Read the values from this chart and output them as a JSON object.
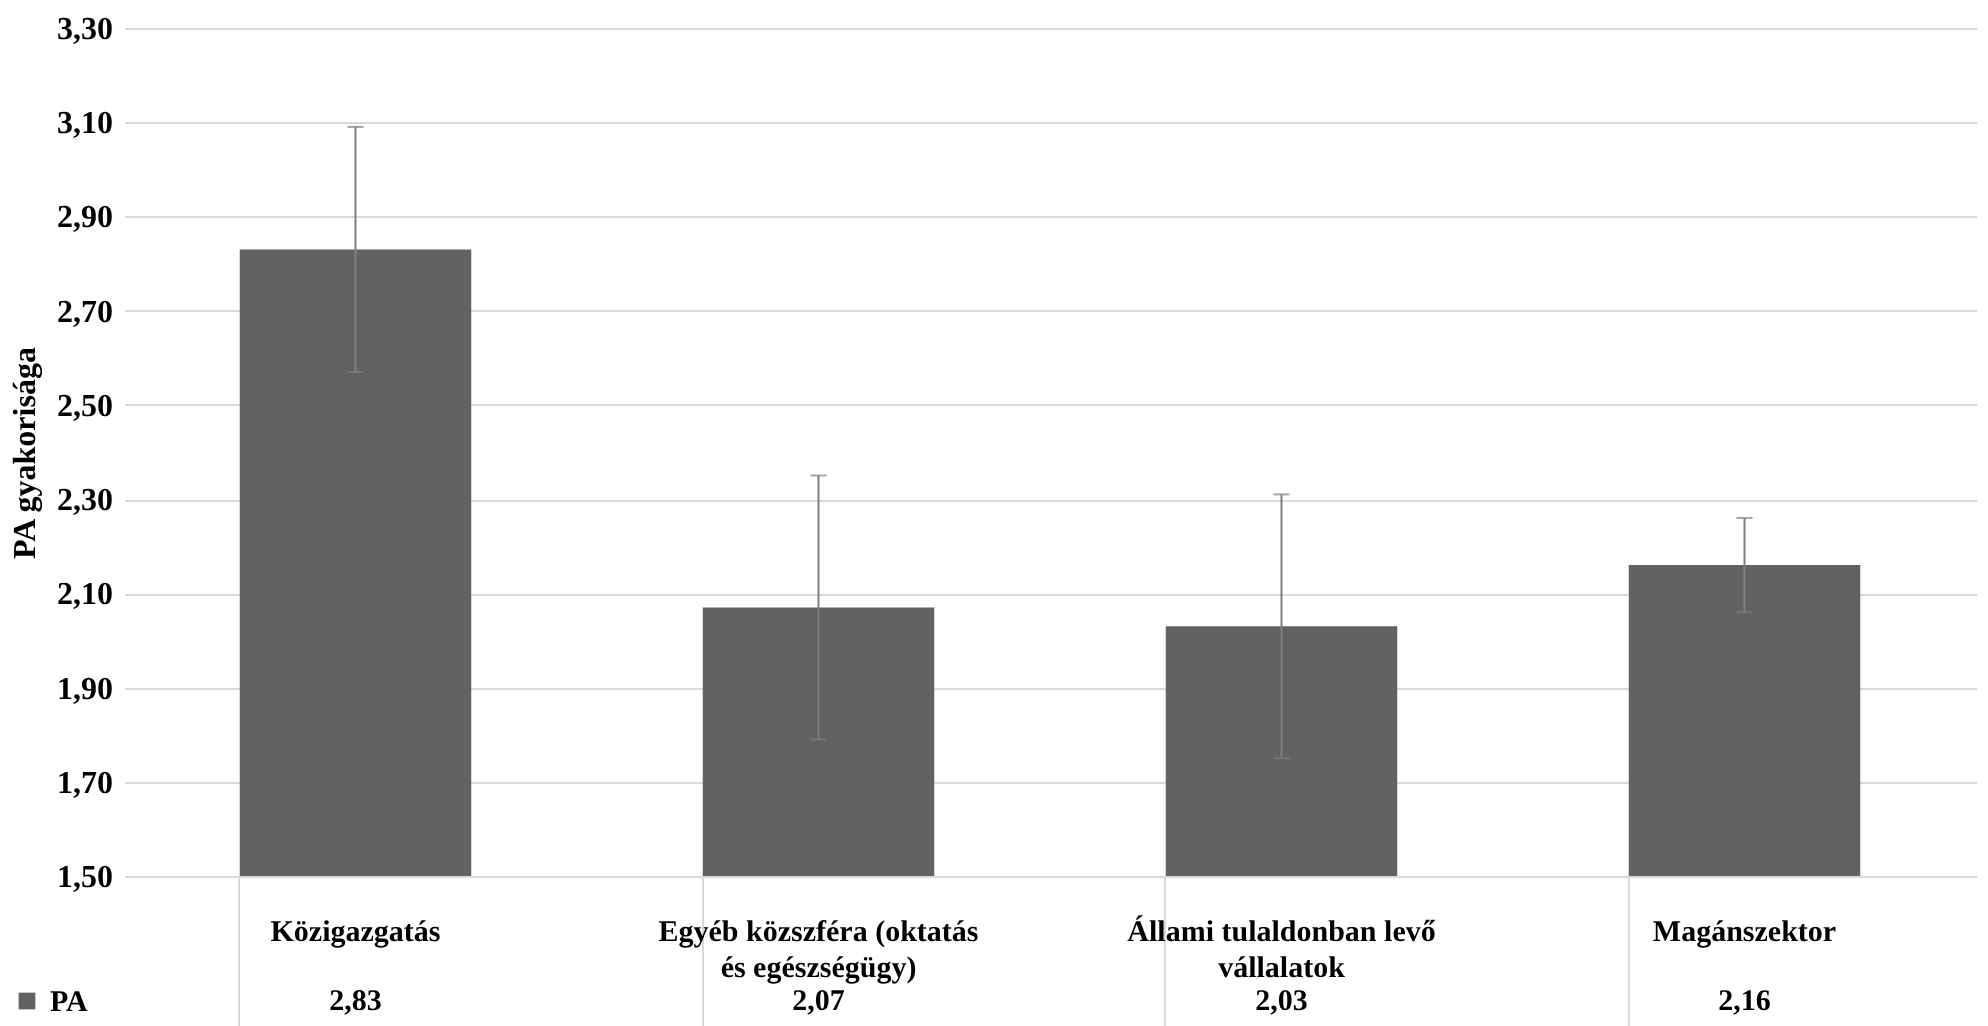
{
  "chart_data": {
    "type": "bar",
    "ylabel": "PA  gyakorisága",
    "categories": [
      "Közigazgatás",
      "Egyéb közszféra (oktatás és egészségügy)",
      "Állami tulaldonban levő vállalatok",
      "Magánszektor"
    ],
    "series": [
      {
        "name": "PA",
        "color": "#626262",
        "values": [
          2.83,
          2.07,
          2.03,
          2.16
        ],
        "errors": [
          0.26,
          0.28,
          0.28,
          0.1
        ],
        "value_labels": [
          "2,83",
          "2,07",
          "2,03",
          "2,16"
        ]
      }
    ],
    "ylim": [
      1.5,
      3.3
    ],
    "yticks": [
      {
        "value": 1.5,
        "label": "1,50"
      },
      {
        "value": 1.7,
        "label": "1,70"
      },
      {
        "value": 1.9,
        "label": "1,90"
      },
      {
        "value": 2.1,
        "label": "2,10"
      },
      {
        "value": 2.3,
        "label": "2,30"
      },
      {
        "value": 2.5,
        "label": "2,50"
      },
      {
        "value": 2.7,
        "label": "2,70"
      },
      {
        "value": 2.9,
        "label": "2,90"
      },
      {
        "value": 3.1,
        "label": "3,10"
      },
      {
        "value": 3.3,
        "label": "3,30"
      }
    ],
    "grid": "y",
    "legend": "bottom left"
  }
}
